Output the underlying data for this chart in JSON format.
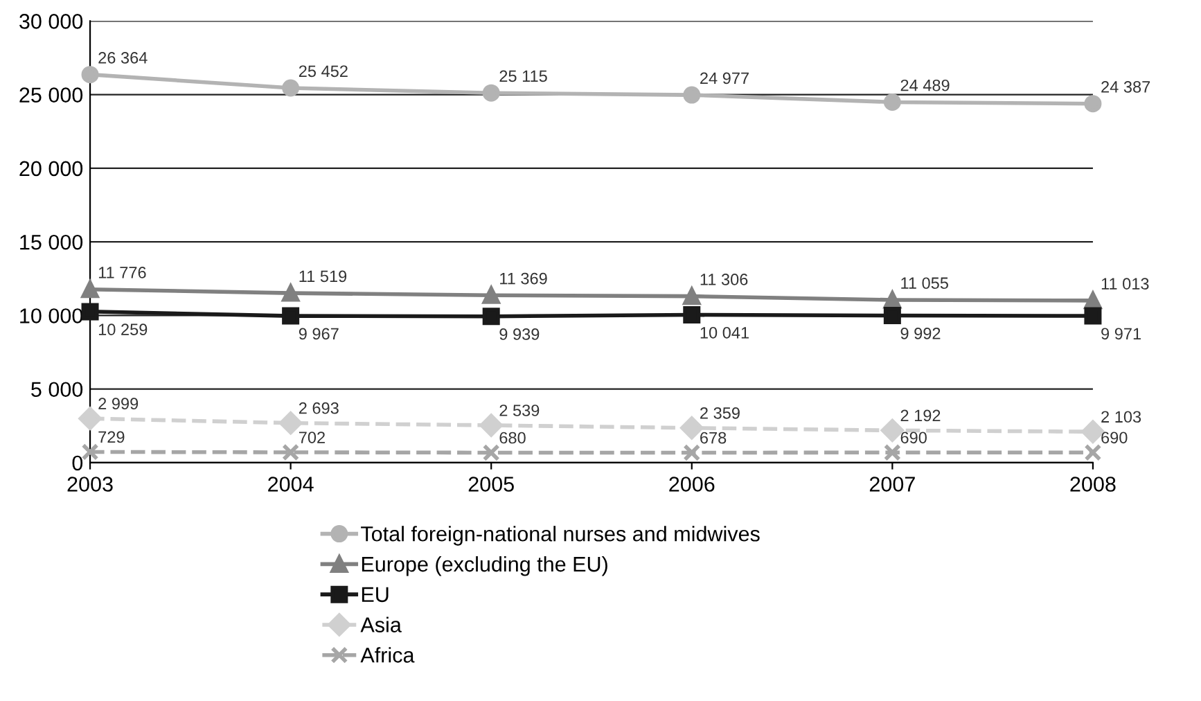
{
  "chart_data": {
    "type": "line",
    "x": [
      2003,
      2004,
      2005,
      2006,
      2007,
      2008
    ],
    "xlim": [
      2003,
      2008
    ],
    "xticks": [
      2003,
      2004,
      2005,
      2006,
      2007,
      2008
    ],
    "ylim": [
      0,
      30000
    ],
    "yticks": [
      0,
      {
        "value": 5000,
        "label": "5 000"
      },
      {
        "value": 10000,
        "label": "10 000"
      },
      {
        "value": 15000,
        "label": "15 000"
      },
      {
        "value": 20000,
        "label": "20 000"
      },
      {
        "value": 25000,
        "label": "25 000"
      },
      {
        "value": 30000,
        "label": "30 000"
      }
    ],
    "grid": "y",
    "legend": "bottom",
    "series": [
      {
        "name": "Total foreign-national nurses and midwives",
        "color": "#b3b3b3",
        "marker": "circle",
        "line_style": "solid",
        "values": [
          26364,
          25452,
          25115,
          24977,
          24489,
          24387
        ],
        "value_labels": [
          "26 364",
          "25 452",
          "25 115",
          "24 977",
          "24 489",
          "24 387"
        ]
      },
      {
        "name": "Europe (excluding the EU)",
        "color": "#808080",
        "marker": "triangle",
        "line_style": "solid",
        "values": [
          11776,
          11519,
          11369,
          11306,
          11055,
          11013
        ],
        "value_labels": [
          "11 776",
          "11 519",
          "11 369",
          "11 306",
          "11 055",
          "11 013"
        ]
      },
      {
        "name": "EU",
        "color": "#1a1a1a",
        "marker": "square",
        "line_style": "solid",
        "values": [
          10259,
          9967,
          9939,
          10041,
          9992,
          9971
        ],
        "value_labels": [
          "10 259",
          "9 967",
          "9 939",
          "10 041",
          "9 992",
          "9 971"
        ]
      },
      {
        "name": "Asia",
        "color": "#d0d0d0",
        "marker": "diamond",
        "line_style": "dashed",
        "values": [
          2999,
          2693,
          2539,
          2359,
          2192,
          2103
        ],
        "value_labels": [
          "2 999",
          "2 693",
          "2 539",
          "2 359",
          "2 192",
          "2 103"
        ]
      },
      {
        "name": "Africa",
        "color": "#a6a6a6",
        "marker": "cross",
        "line_style": "dashed",
        "values": [
          729,
          702,
          680,
          678,
          690,
          690
        ],
        "value_labels": [
          "729",
          "702",
          "680",
          "678",
          "690",
          "690"
        ]
      }
    ]
  }
}
